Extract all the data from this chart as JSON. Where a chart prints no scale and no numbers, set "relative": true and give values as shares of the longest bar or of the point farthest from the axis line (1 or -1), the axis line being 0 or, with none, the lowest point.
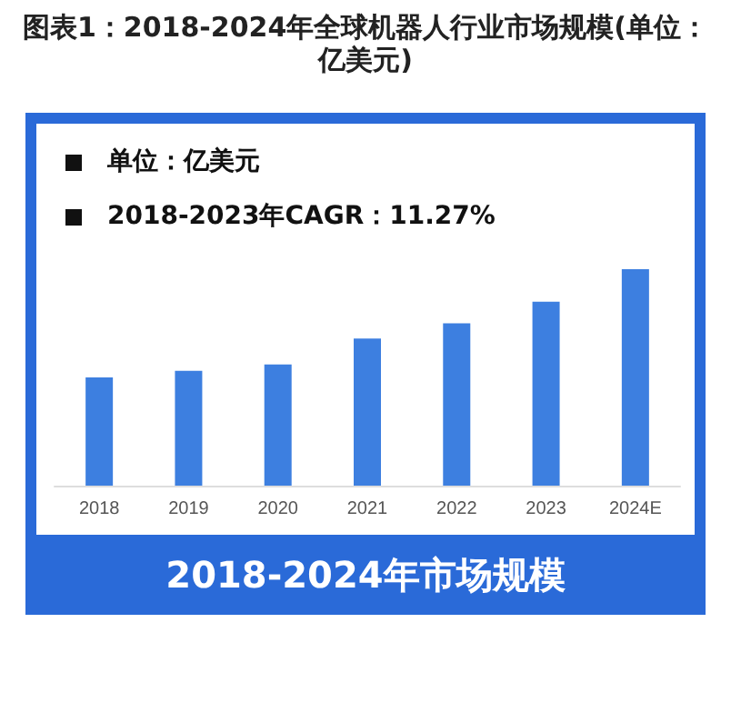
{
  "chart_data": {
    "type": "bar",
    "title": "图表1：2018-2024年全球机器人行业市场规模(单位：亿美元)",
    "xlabel": "2018-2024年市场规模",
    "annotations": [
      "单位：亿美元",
      "2018-2023年CAGR：11.27%"
    ],
    "categories": [
      "2018",
      "2019",
      "2020",
      "2021",
      "2022",
      "2023",
      "2024E"
    ],
    "values": [
      0.5,
      0.53,
      0.56,
      0.68,
      0.75,
      0.85,
      1
    ],
    "color": "#3d7fe0",
    "relative": true
  }
}
